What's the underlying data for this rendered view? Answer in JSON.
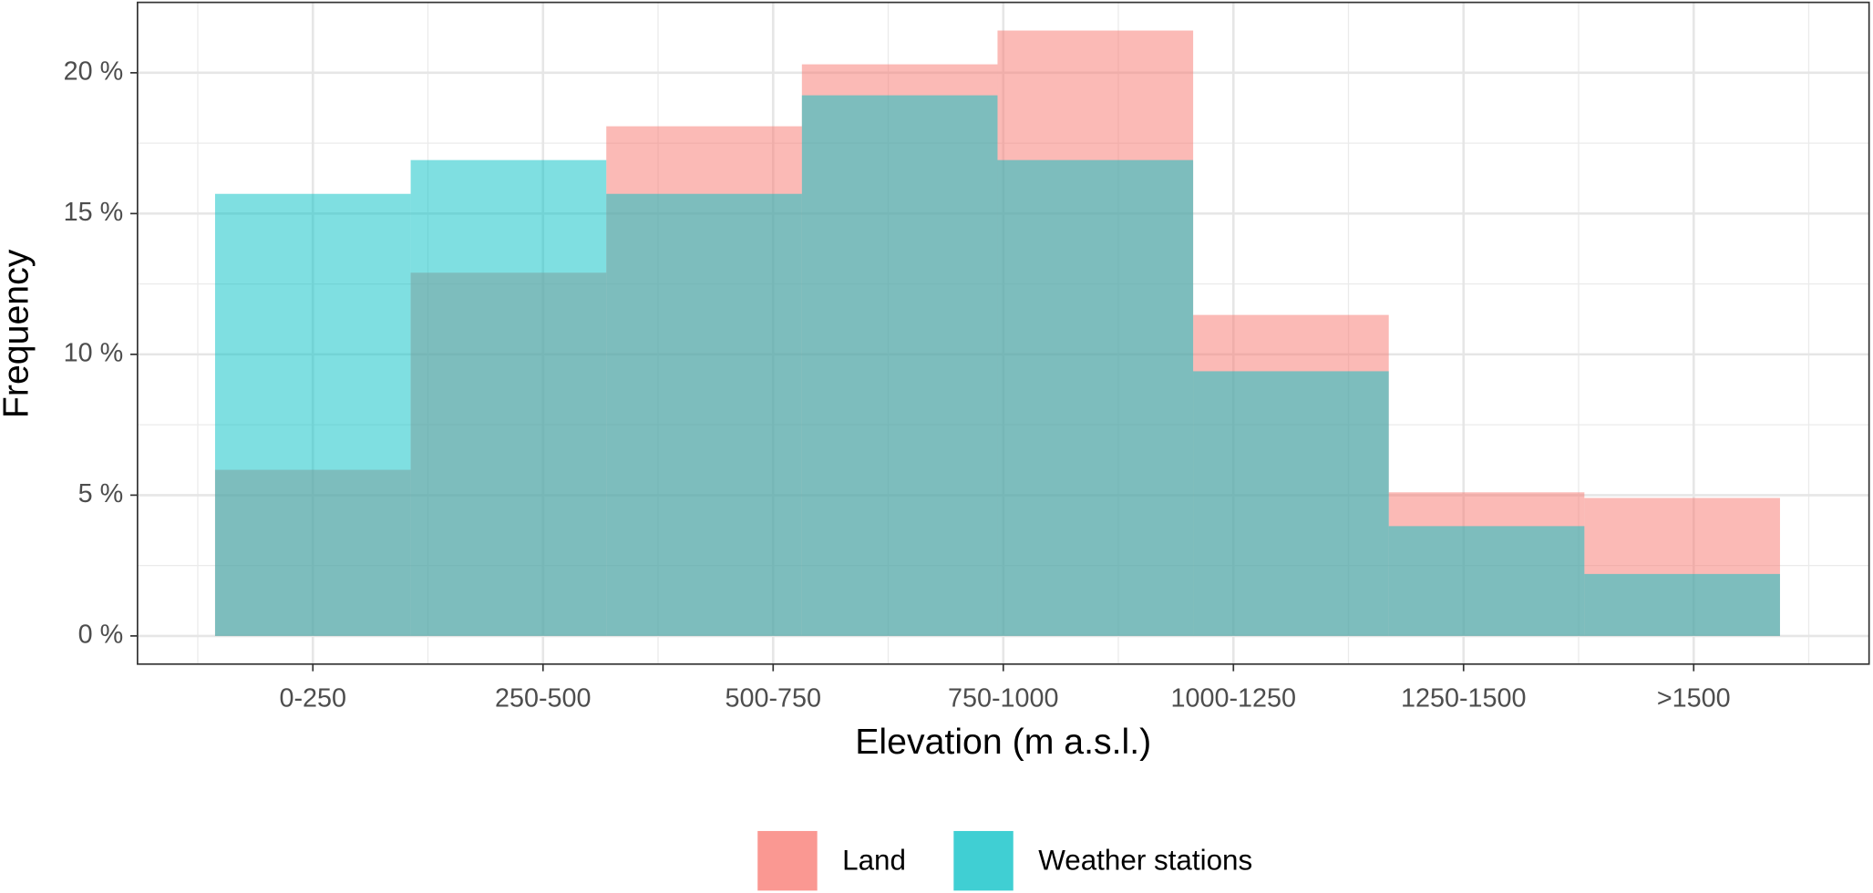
{
  "chart_data": {
    "type": "histogram",
    "x_label": "Elevation (m a.s.l.)",
    "y_label": "Frequency",
    "bins": [
      0.575,
      1.425,
      2.275,
      3.125,
      3.975,
      4.825,
      5.675,
      6.525,
      7.375
    ],
    "series": [
      {
        "name": "Land",
        "color": "#F8766D",
        "values": [
          5.9,
          12.9,
          18.1,
          20.3,
          21.5,
          11.4,
          5.1,
          4.9
        ]
      },
      {
        "name": "Weather stations",
        "color": "#00BFC4",
        "values": [
          15.7,
          16.9,
          15.7,
          19.2,
          16.9,
          9.4,
          3.9,
          2.2
        ]
      }
    ],
    "opacity": 0.5,
    "xlim": [
      0.238,
      7.762
    ],
    "xticks": [
      {
        "value": 1,
        "label": "0-250"
      },
      {
        "value": 2,
        "label": "250-500"
      },
      {
        "value": 3,
        "label": "500-750"
      },
      {
        "value": 4,
        "label": "750-1000"
      },
      {
        "value": 5,
        "label": "1000-1250"
      },
      {
        "value": 6,
        "label": "1250-1500"
      },
      {
        "value": 7,
        "label": ">1500"
      }
    ],
    "ylim": [
      -1.0,
      22.5
    ],
    "yticks": [
      {
        "value": 0,
        "label": "0 %"
      },
      {
        "value": 5,
        "label": "5 %"
      },
      {
        "value": 10,
        "label": "10 %"
      },
      {
        "value": 15,
        "label": "15 %"
      },
      {
        "value": 20,
        "label": "20 %"
      }
    ],
    "grid": true,
    "legend": "bottom"
  }
}
